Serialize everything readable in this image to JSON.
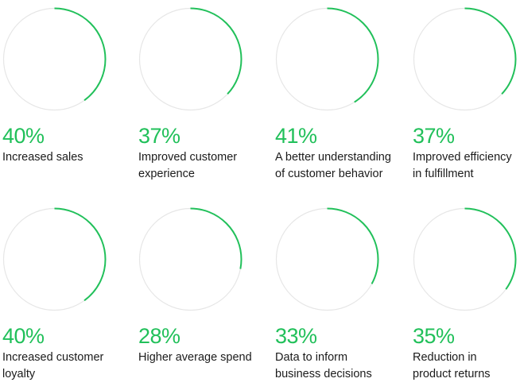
{
  "colors": {
    "accent": "#21c05a",
    "track": "#e6e6e6",
    "text": "#1b1b1b"
  },
  "chart_data": {
    "type": "pie",
    "unit": "%",
    "max": 100,
    "items": [
      {
        "value": 40,
        "display": "40%",
        "label_lines": [
          "Increased sales"
        ]
      },
      {
        "value": 37,
        "display": "37%",
        "label_lines": [
          "Improved customer",
          "experience"
        ]
      },
      {
        "value": 41,
        "display": "41%",
        "label_lines": [
          "A better understanding",
          "of customer behavior"
        ]
      },
      {
        "value": 37,
        "display": "37%",
        "label_lines": [
          "Improved efficiency",
          "in fulfillment"
        ]
      },
      {
        "value": 40,
        "display": "40%",
        "label_lines": [
          "Increased customer",
          "loyalty"
        ]
      },
      {
        "value": 28,
        "display": "28%",
        "label_lines": [
          "Higher average spend"
        ]
      },
      {
        "value": 33,
        "display": "33%",
        "label_lines": [
          "Data to inform",
          "business decisions"
        ]
      },
      {
        "value": 35,
        "display": "35%",
        "label_lines": [
          "Reduction in",
          "product returns"
        ]
      }
    ]
  }
}
